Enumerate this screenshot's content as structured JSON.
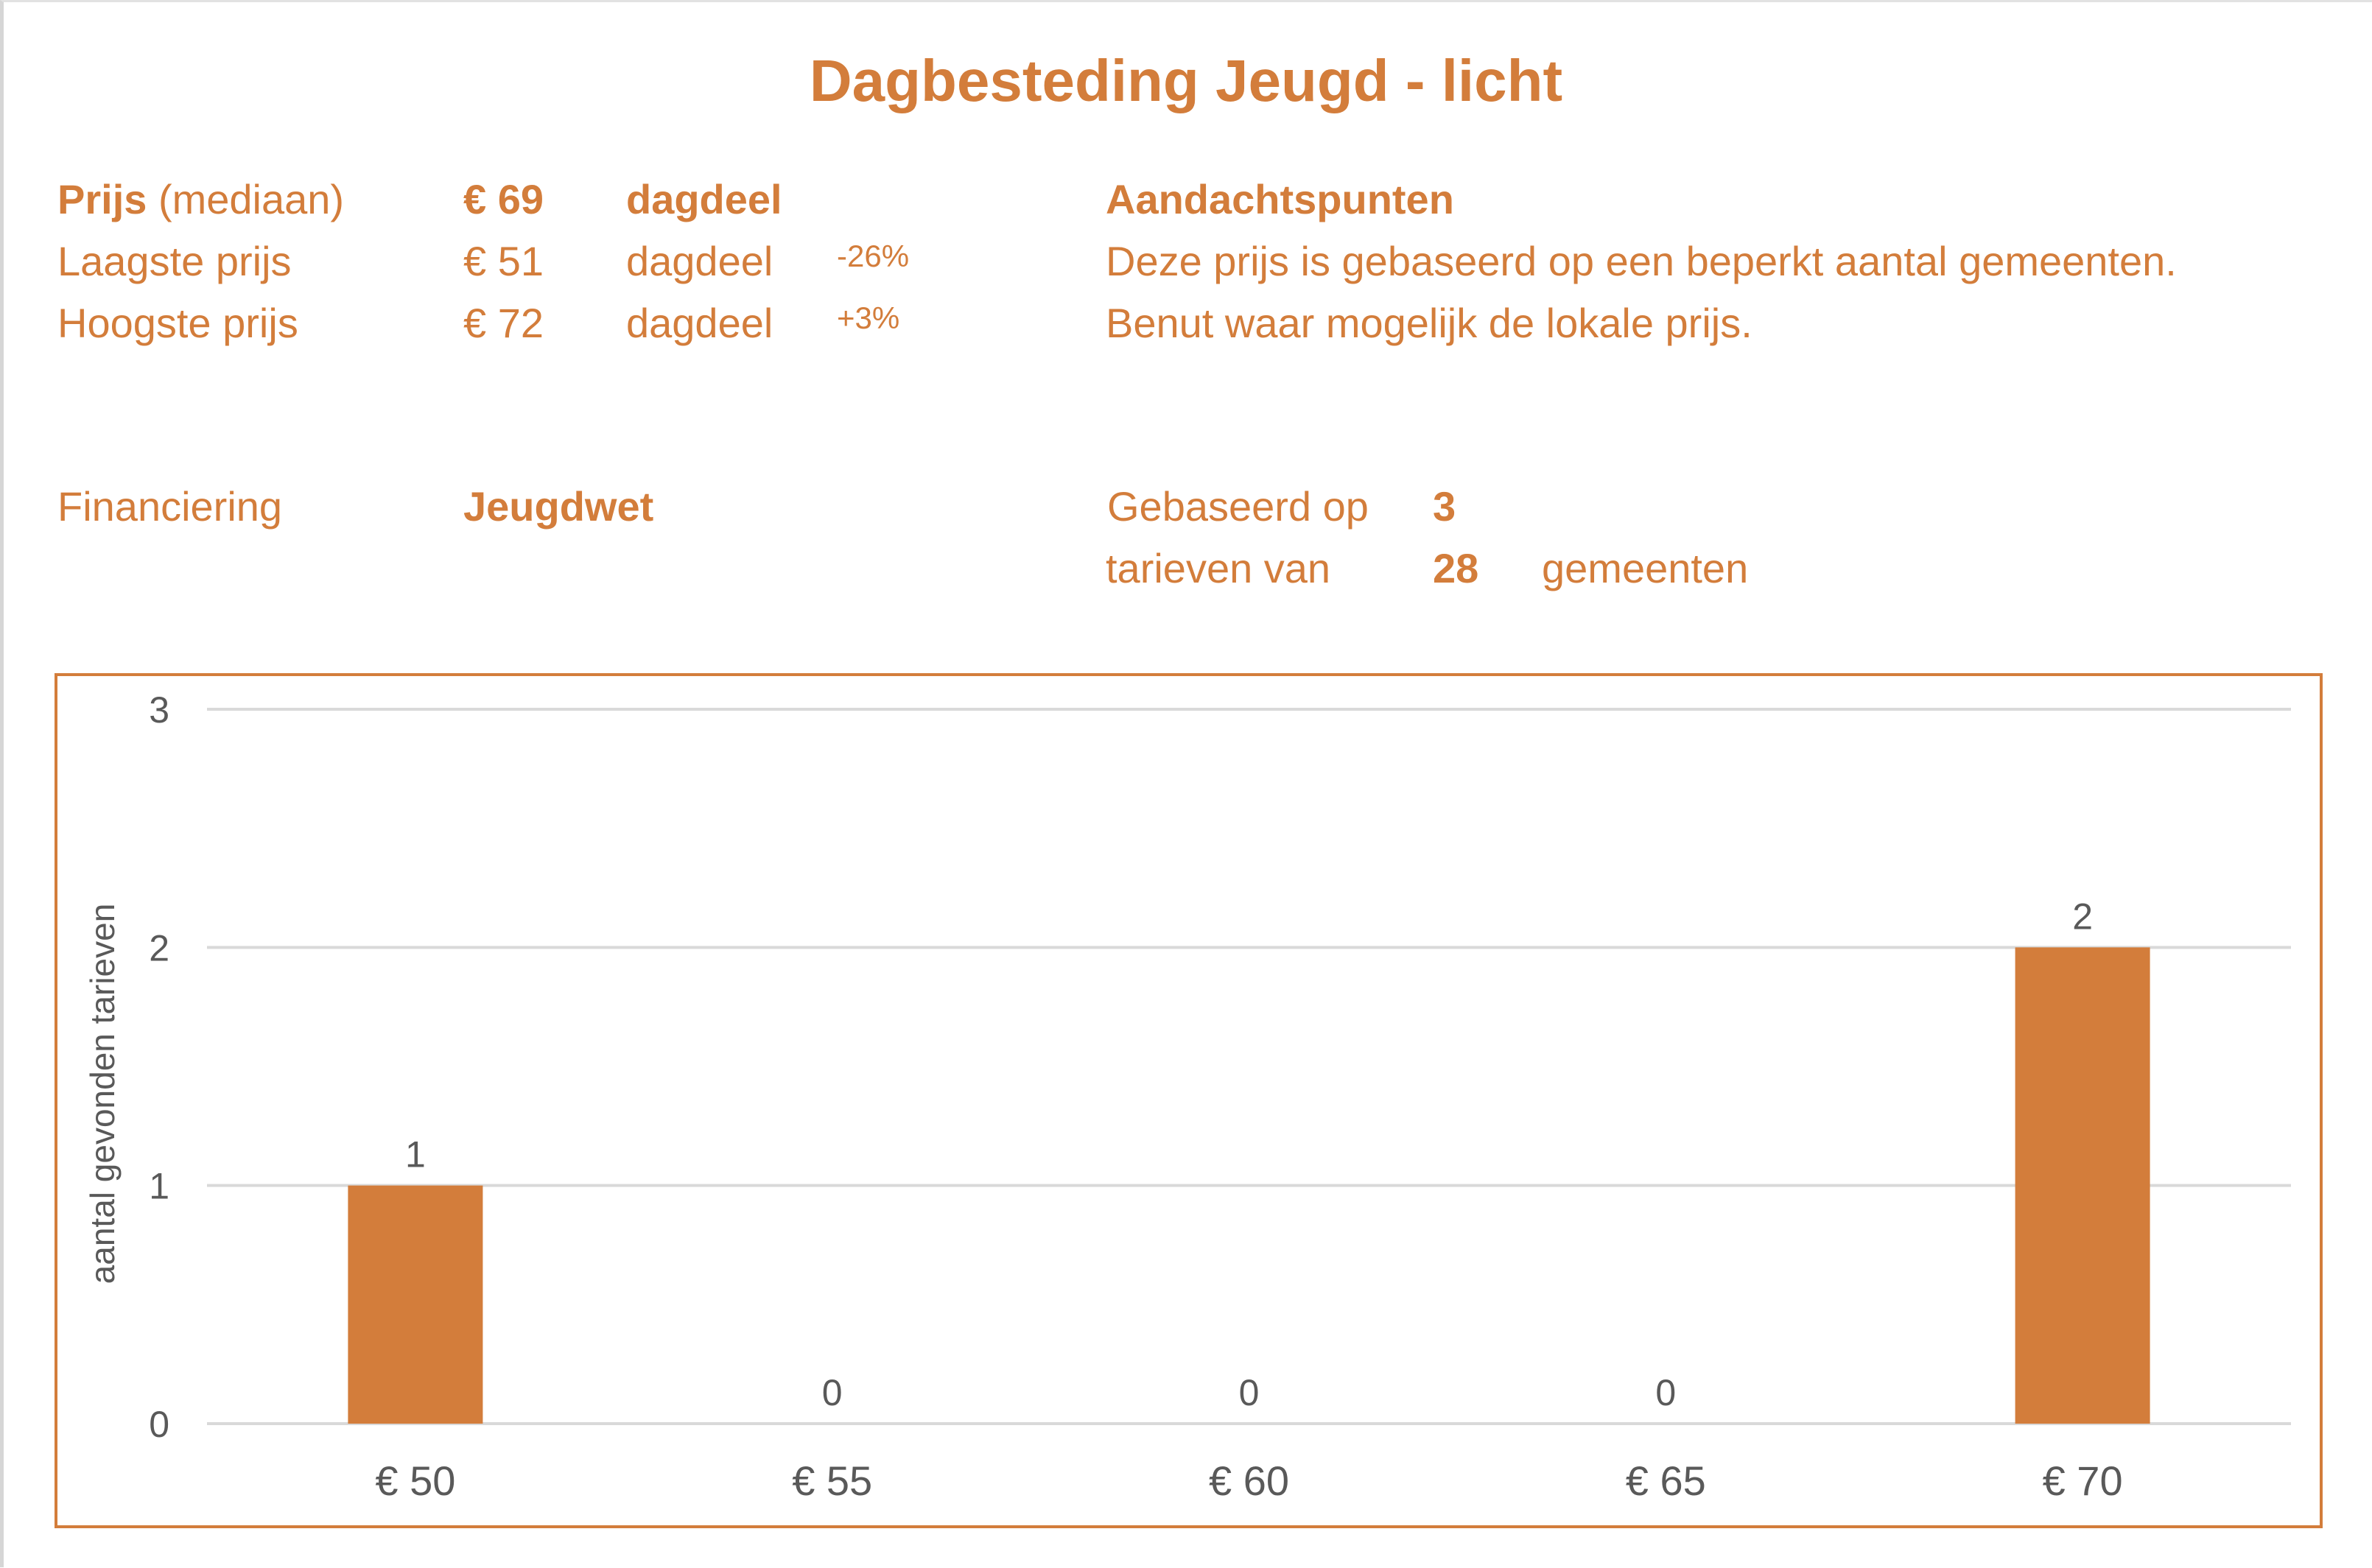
{
  "title": "Dagbesteding Jeugd - licht",
  "prices": {
    "median": {
      "label_bold": "Prijs",
      "label_rest": "(mediaan)",
      "value": "€ 69",
      "unit": "dagdeel"
    },
    "lowest": {
      "label": "Laagste prijs",
      "value": "€ 51",
      "unit": "dagdeel",
      "delta": "-26%"
    },
    "highest": {
      "label": "Hoogste prijs",
      "value": "€ 72",
      "unit": "dagdeel",
      "delta": "+3%"
    }
  },
  "notes": {
    "heading": "Aandachtspunten",
    "line1": "Deze prijs is gebaseerd op een beperkt aantal gemeenten.",
    "line2": "Benut waar mogelijk de lokale prijs."
  },
  "financing": {
    "label": "Financiering",
    "value": "Jeugdwet"
  },
  "basis": {
    "label1": "Gebaseerd op",
    "count_rates": "3",
    "label2": "tarieven van",
    "count_municipalities": "28",
    "label3": "gemeenten"
  },
  "colors": {
    "accent": "#D37D3B",
    "axis_text": "#595959",
    "grid": "#d9d9d9"
  },
  "chart_data": {
    "type": "bar",
    "categories": [
      "€ 50",
      "€ 55",
      "€ 60",
      "€ 65",
      "€ 70"
    ],
    "values": [
      1,
      0,
      0,
      0,
      2
    ],
    "ylabel": "aantal gevonden tarieven",
    "xlabel": "",
    "ylim": [
      0,
      3
    ],
    "yticks": [
      "0",
      "1",
      "2",
      "3"
    ],
    "grid": true,
    "data_labels": true
  }
}
